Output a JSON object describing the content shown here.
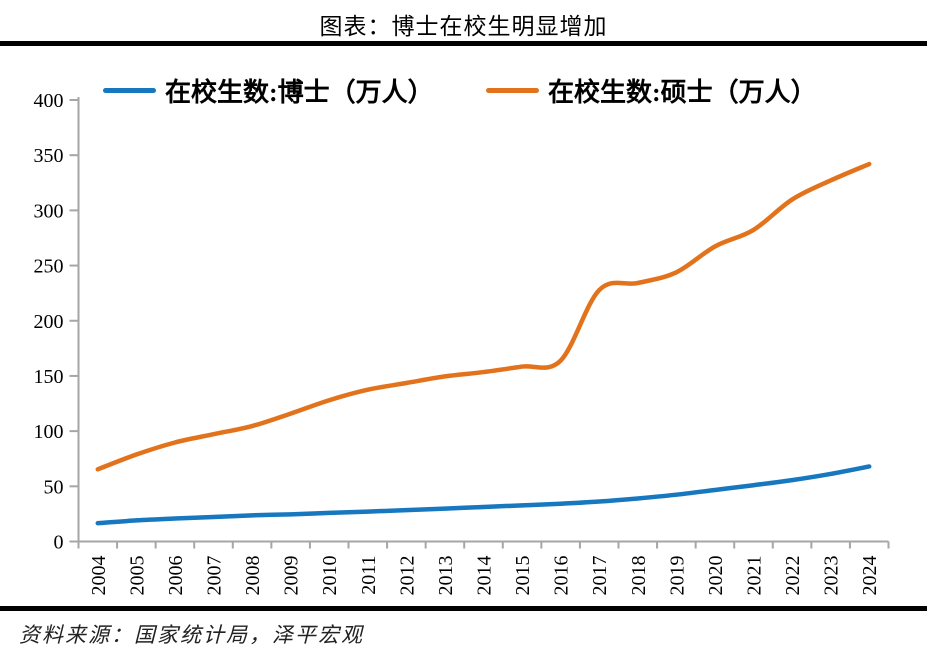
{
  "title": "图表：博士在校生明显增加",
  "source": "资料来源：国家统计局，泽平宏观",
  "colors": {
    "doctor_line": "#1778BF",
    "master_line": "#E2731C",
    "axis": "#A6A6A6",
    "divider": "#000000"
  },
  "legend": {
    "items": [
      {
        "label": "在校生数:博士（万人）",
        "series_index": 0
      },
      {
        "label": "在校生数:硕士（万人）",
        "series_index": 1
      }
    ]
  },
  "chart_data": {
    "type": "line",
    "title": "图表：博士在校生明显增加",
    "x": [
      "2004",
      "2005",
      "2006",
      "2007",
      "2008",
      "2009",
      "2010",
      "2011",
      "2012",
      "2013",
      "2014",
      "2015",
      "2016",
      "2017",
      "2018",
      "2019",
      "2020",
      "2021",
      "2022",
      "2023",
      "2024"
    ],
    "series": [
      {
        "name": "在校生数:博士（万人）",
        "color": "#1778BF",
        "values": [
          16.6,
          19.1,
          20.8,
          22.2,
          23.7,
          24.6,
          25.9,
          27.1,
          28.4,
          29.8,
          31.3,
          32.7,
          34.2,
          36.2,
          39.0,
          42.4,
          46.7,
          51.0,
          55.6,
          61.2,
          68.0
        ]
      },
      {
        "name": "在校生数:硕士（万人）",
        "color": "#E2731C",
        "values": [
          65.4,
          78.8,
          89.7,
          97.2,
          104.6,
          115.9,
          128.0,
          137.5,
          143.6,
          149.6,
          153.5,
          158.5,
          163.9,
          227.8,
          234.2,
          243.9,
          267.3,
          282.3,
          309.8,
          327.1,
          342.0
        ]
      }
    ],
    "ylim": [
      0,
      400
    ],
    "yticks": [
      0,
      50,
      100,
      150,
      200,
      250,
      300,
      350,
      400
    ],
    "grid": false,
    "smooth": true,
    "legend_position": "top"
  }
}
